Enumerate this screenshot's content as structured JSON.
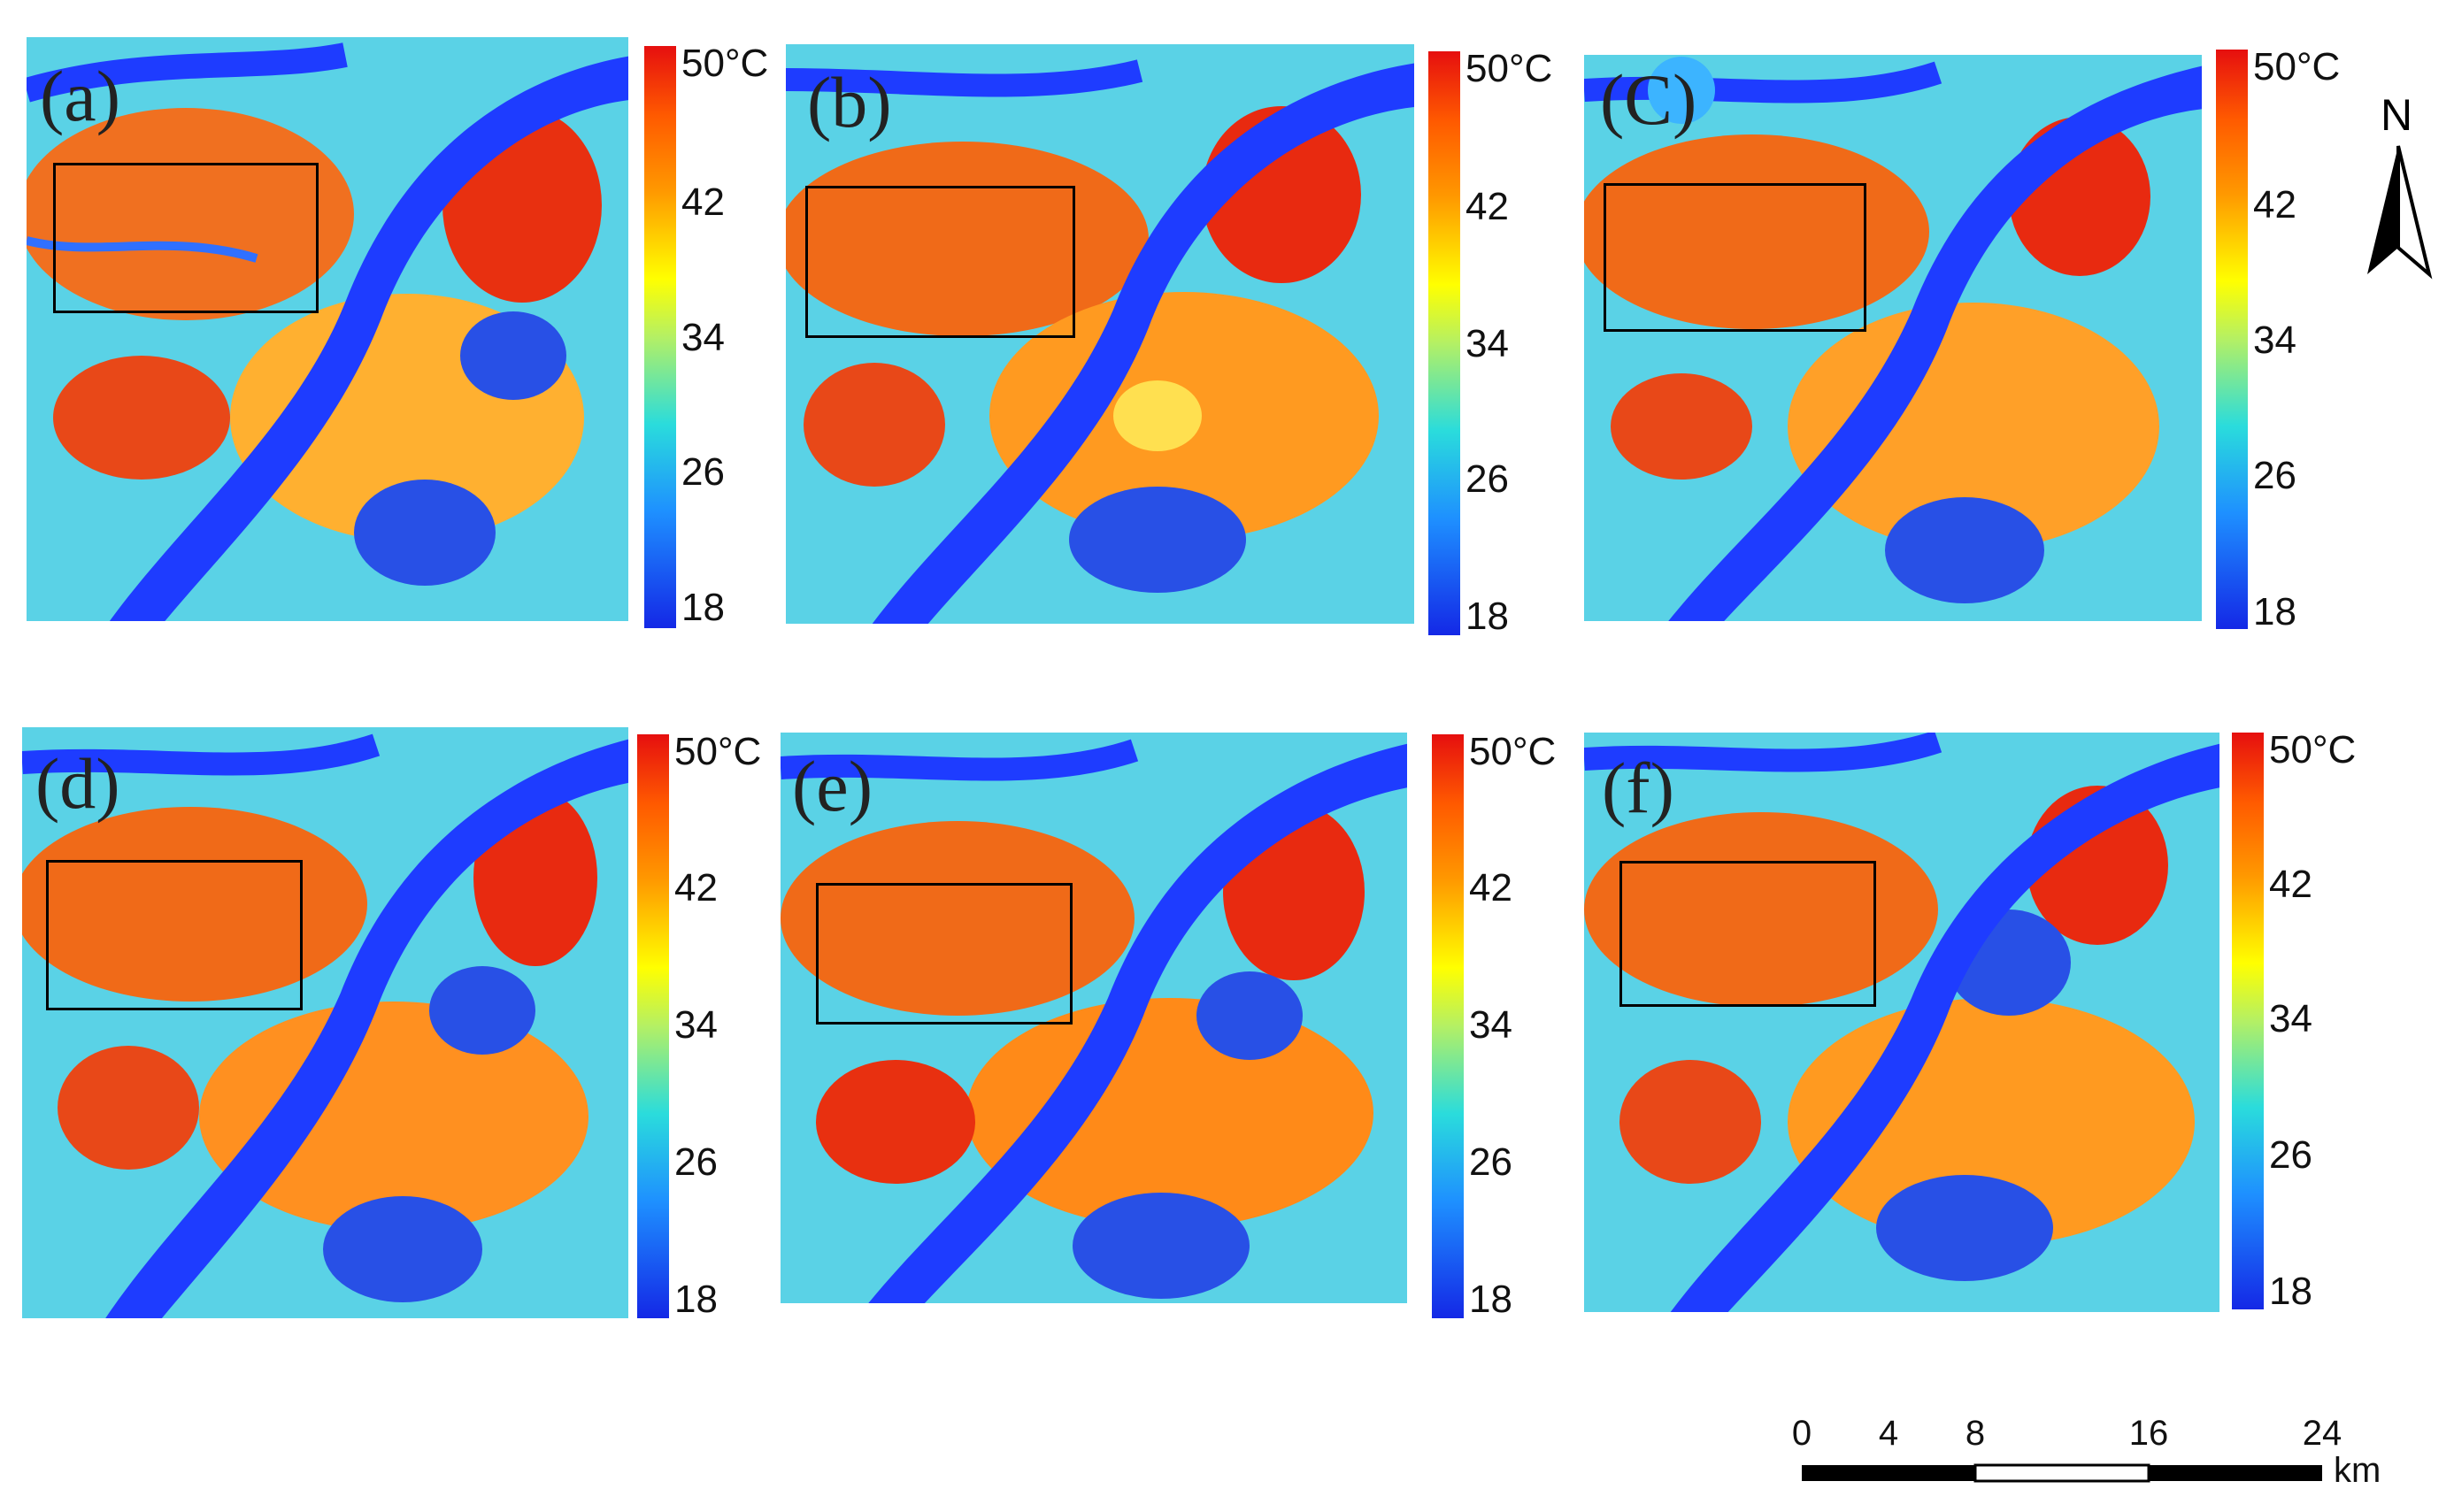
{
  "figure": {
    "panels": [
      {
        "label": "(a)",
        "colorbar": {
          "max_label": "50°C",
          "ticks": [
            "42",
            "34",
            "26",
            "18"
          ]
        }
      },
      {
        "label": "(b)",
        "colorbar": {
          "max_label": "50°C",
          "ticks": [
            "42",
            "34",
            "26",
            "18"
          ]
        }
      },
      {
        "label": "(C)",
        "colorbar": {
          "max_label": "50°C",
          "ticks": [
            "42",
            "34",
            "26",
            "18"
          ]
        }
      },
      {
        "label": "(d)",
        "colorbar": {
          "max_label": "50°C",
          "ticks": [
            "42",
            "34",
            "26",
            "18"
          ]
        }
      },
      {
        "label": "(e)",
        "colorbar": {
          "max_label": "50°C",
          "ticks": [
            "42",
            "34",
            "26",
            "18"
          ]
        }
      },
      {
        "label": "(f)",
        "colorbar": {
          "max_label": "50°C",
          "ticks": [
            "42",
            "34",
            "26",
            "18"
          ]
        }
      }
    ],
    "north_arrow": {
      "label": "N"
    },
    "scale_bar": {
      "ticks": [
        "0",
        "4",
        "8",
        "16",
        "24"
      ],
      "unit": "km"
    },
    "colors": {
      "hot": "#e60f0f",
      "warm": "#ff9900",
      "mid": "#ffff00",
      "cool": "#2adcdc",
      "cold": "#1428e6",
      "river": "#1e3cff"
    }
  }
}
